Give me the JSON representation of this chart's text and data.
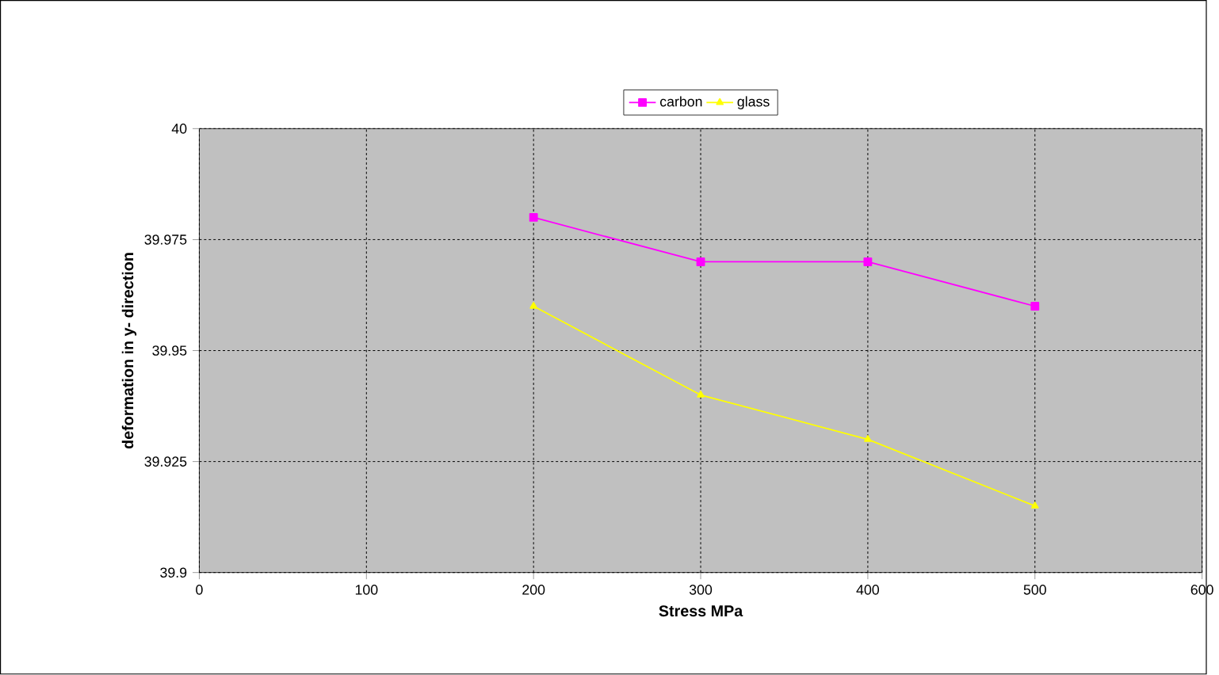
{
  "chart_data": {
    "type": "line",
    "xlabel": "Stress MPa",
    "ylabel": "deformation in y- direction",
    "x": [
      200,
      300,
      400,
      500
    ],
    "series": [
      {
        "name": "carbon",
        "color": "#ff00ff",
        "marker": "square",
        "values": [
          39.98,
          39.97,
          39.97,
          39.96
        ]
      },
      {
        "name": "glass",
        "color": "#ffff00",
        "marker": "triangle",
        "values": [
          39.96,
          39.94,
          39.93,
          39.915
        ]
      }
    ],
    "xlim": [
      0,
      600
    ],
    "xticks": [
      0,
      100,
      200,
      300,
      400,
      500,
      600
    ],
    "ylim": [
      39.9,
      40
    ],
    "yticks": [
      39.9,
      39.925,
      39.95,
      39.975,
      40
    ],
    "grid": true,
    "legend": "top",
    "line_style": "solid"
  }
}
